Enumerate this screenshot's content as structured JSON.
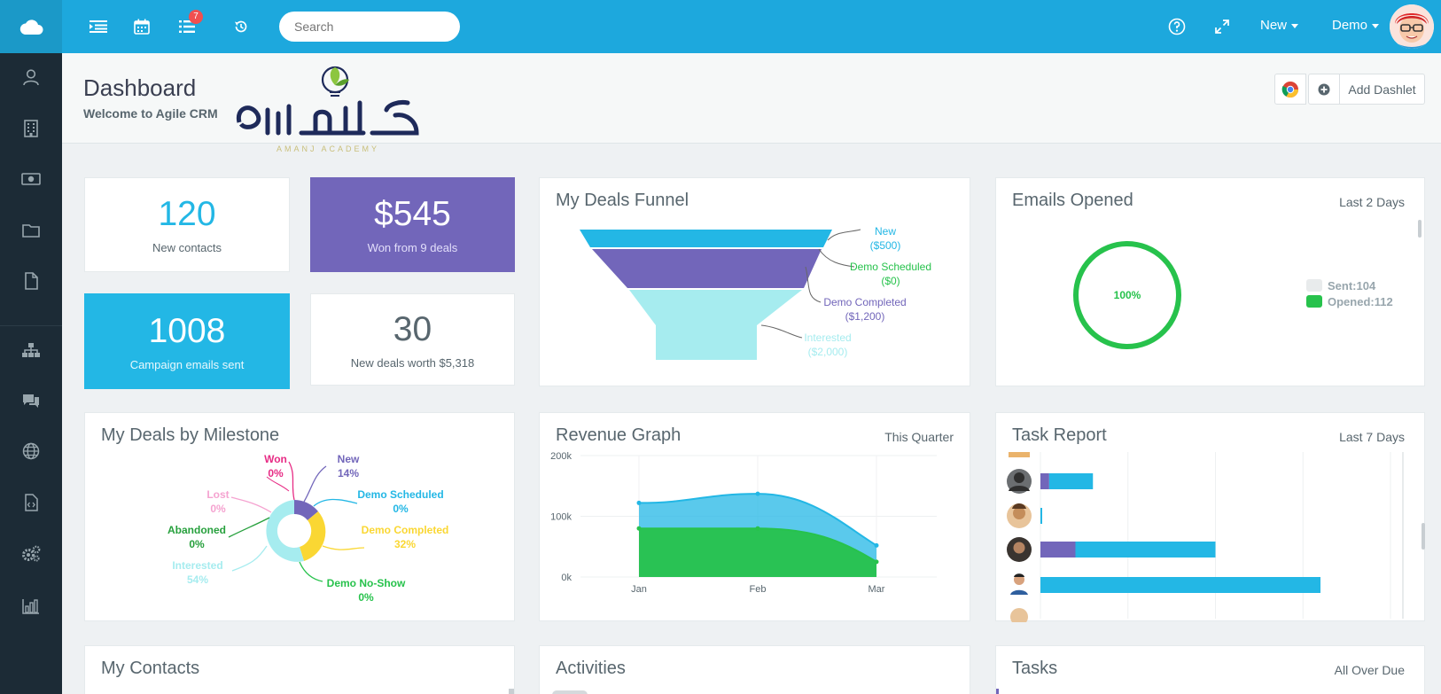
{
  "topbar": {
    "badge_count": "7",
    "search_placeholder": "Search",
    "new_label": "New",
    "user_label": "Demo"
  },
  "header": {
    "title": "Dashboard",
    "subtitle": "Welcome to Agile CRM",
    "add_dashlet": "Add Dashlet",
    "logo_text": "AMANJ ACADEMY"
  },
  "stats": [
    {
      "value": "120",
      "label": "New contacts",
      "color": "#23b7e5"
    },
    {
      "value": "$545",
      "label": "Won from 9 deals",
      "color": "#7266ba"
    },
    {
      "value": "1008",
      "label": "Campaign emails sent",
      "color": "#27c24c"
    },
    {
      "value": "30",
      "label": "New deals worth $5,318",
      "color": "#58666e"
    }
  ],
  "funnel": {
    "title": "My Deals Funnel",
    "stages": [
      {
        "name": "New",
        "amount": "($500)",
        "color": "#23b7e5"
      },
      {
        "name": "Demo Scheduled",
        "amount": "($0)",
        "color": "#27c24c"
      },
      {
        "name": "Demo Completed",
        "amount": "($1,200)",
        "color": "#7266ba"
      },
      {
        "name": "Interested",
        "amount": "($2,000)",
        "color": "#a6ecef"
      }
    ]
  },
  "emails": {
    "title": "Emails Opened",
    "period": "Last 2 Days",
    "center_label": "100%",
    "legend": [
      {
        "label": "Sent:104",
        "color": "#e8ebec"
      },
      {
        "label": "Opened:112",
        "color": "#27c24c"
      }
    ]
  },
  "milestone": {
    "title": "My Deals by Milestone",
    "slices": [
      {
        "name": "Won",
        "pct": "0%",
        "value": 0,
        "color": "#e72c85"
      },
      {
        "name": "New",
        "pct": "14%",
        "value": 14,
        "color": "#7266ba"
      },
      {
        "name": "Demo Scheduled",
        "pct": "0%",
        "value": 0,
        "color": "#23b7e5"
      },
      {
        "name": "Demo Completed",
        "pct": "32%",
        "value": 32,
        "color": "#fad733"
      },
      {
        "name": "Demo No-Show",
        "pct": "0%",
        "value": 0,
        "color": "#27c24c"
      },
      {
        "name": "Interested",
        "pct": "54%",
        "value": 54,
        "color": "#a6ecef"
      },
      {
        "name": "Abandoned",
        "pct": "0%",
        "value": 0,
        "color": "#27a03d"
      },
      {
        "name": "Lost",
        "pct": "0%",
        "value": 0,
        "color": "#f5a3d0"
      }
    ]
  },
  "revenue": {
    "title": "Revenue Graph",
    "period": "This Quarter"
  },
  "tasks_report": {
    "title": "Task Report",
    "period": "Last 7 Days"
  },
  "bottom": {
    "contacts_title": "My Contacts",
    "activities_title": "Activities",
    "tasks_title": "Tasks",
    "tasks_period": "All Over Due"
  },
  "chart_data": [
    {
      "type": "area",
      "title": "Revenue Graph",
      "categories": [
        "Jan",
        "Feb",
        "Mar"
      ],
      "ylim": [
        0,
        200000
      ],
      "yticks": [
        "0k",
        "100k",
        "200k"
      ],
      "series": [
        {
          "values": [
            122000,
            137000,
            52000
          ],
          "color": "#23b7e5"
        },
        {
          "values": [
            80000,
            80000,
            25000
          ],
          "color": "#27c24c"
        }
      ]
    },
    {
      "type": "bar",
      "title": "Task Report",
      "rows": [
        {
          "segments": [
            {
              "value": 1,
              "color": "#7266ba"
            },
            {
              "value": 5,
              "color": "#23b7e5"
            }
          ]
        },
        {
          "segments": [
            {
              "value": 0.2,
              "color": "#23b7e5"
            }
          ]
        },
        {
          "segments": [
            {
              "value": 4,
              "color": "#7266ba"
            },
            {
              "value": 16,
              "color": "#23b7e5"
            }
          ]
        },
        {
          "segments": [
            {
              "value": 32,
              "color": "#23b7e5"
            }
          ]
        }
      ],
      "xlim": [
        0,
        40
      ]
    }
  ]
}
